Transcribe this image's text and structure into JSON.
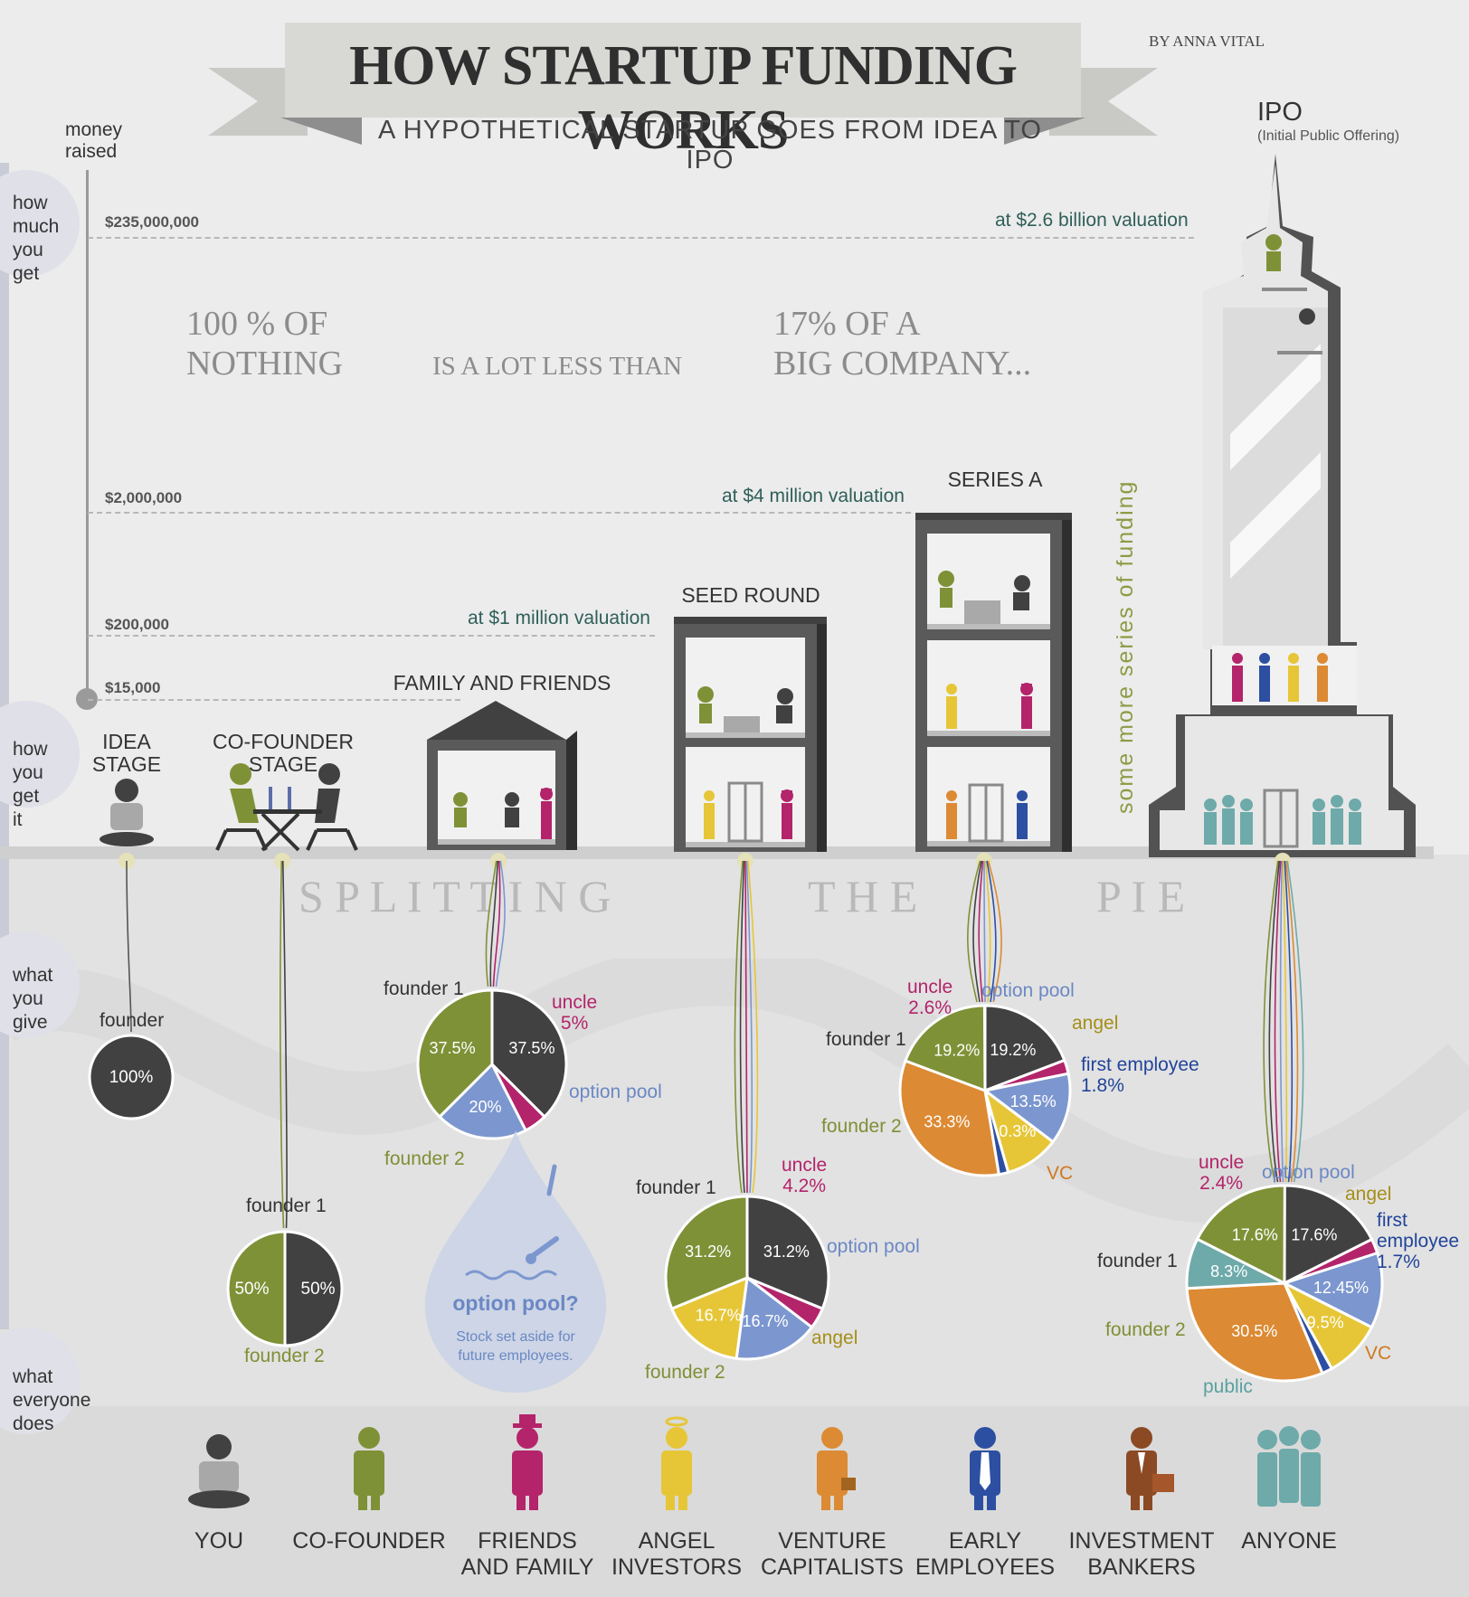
{
  "title": "HOW STARTUP FUNDING WORKS",
  "subtitle": "A HYPOTHETICAL STARTUP GOES FROM IDEA TO IPO",
  "byline": "BY ANNA VITAL",
  "axis": {
    "label": "money\nraised"
  },
  "side_labels": [
    "how\nmuch\nyou\nget",
    "how\nyou\nget\nit",
    "what\nyou\ngive",
    "what\neveryone\ndoes"
  ],
  "money_levels": [
    "$235,000,000",
    "$2,000,000",
    "$200,000",
    "$15,000"
  ],
  "valuations": [
    "at $2.6 billion valuation",
    "at $4 million valuation",
    "at $1 million valuation"
  ],
  "big_text": {
    "left": "100 % OF\nNOTHING",
    "middle": "IS A LOT LESS THAN",
    "right": "17% OF A\nBIG COMPANY..."
  },
  "stages": {
    "idea": "IDEA\nSTAGE",
    "cofounder": "CO-FOUNDER STAGE",
    "family": "FAMILY AND FRIENDS",
    "seed": "SEED ROUND",
    "series_a": "SERIES A",
    "ipo": "IPO",
    "ipo_sub": "(Initial Public Offering)"
  },
  "more_series": "some more series of funding",
  "splitting": [
    "S P L I T T I N G",
    "T H E",
    "P I E"
  ],
  "option_note": {
    "title": "option pool?",
    "text": "Stock set aside for\nfuture employees."
  },
  "colors": {
    "founder1": "#414141",
    "founder2": "#7f9137",
    "uncle": "#b3246b",
    "option": "#7c97cf",
    "angel": "#e6c637",
    "employee": "#2d4fa2",
    "vc": "#dc8a33",
    "public": "#6eaaaa"
  },
  "pies": [
    {
      "key": "idea",
      "labels": {
        "founder": "founder"
      },
      "slices": [
        {
          "role": "founder1",
          "pct": 100,
          "text": "100%"
        }
      ]
    },
    {
      "key": "cofounder",
      "labels": {
        "f1": "founder 1",
        "f2": "founder 2"
      },
      "slices": [
        {
          "role": "founder1",
          "pct": 50,
          "text": "50%"
        },
        {
          "role": "founder2",
          "pct": 50,
          "text": "50%"
        }
      ]
    },
    {
      "key": "family",
      "labels": {
        "f1": "founder 1",
        "f2": "founder 2",
        "uncle": "uncle\n5%",
        "option": "option pool"
      },
      "slices": [
        {
          "role": "founder1",
          "pct": 37.5,
          "text": "37.5%"
        },
        {
          "role": "uncle",
          "pct": 5,
          "text": ""
        },
        {
          "role": "option",
          "pct": 20,
          "text": "20%"
        },
        {
          "role": "founder2",
          "pct": 37.5,
          "text": "37.5%"
        }
      ]
    },
    {
      "key": "seed",
      "labels": {
        "f1": "founder 1",
        "f2": "founder 2",
        "uncle": "uncle\n4.2%",
        "option": "option pool",
        "angel": "angel"
      },
      "slices": [
        {
          "role": "founder1",
          "pct": 31.2,
          "text": "31.2%"
        },
        {
          "role": "uncle",
          "pct": 4.2,
          "text": ""
        },
        {
          "role": "option",
          "pct": 16.7,
          "text": "16.7%"
        },
        {
          "role": "angel",
          "pct": 16.7,
          "text": "16.7%"
        },
        {
          "role": "founder2",
          "pct": 31.2,
          "text": "31.2%"
        }
      ]
    },
    {
      "key": "series_a",
      "labels": {
        "f1": "founder 1",
        "f2": "founder 2",
        "uncle": "uncle\n2.6%",
        "option": "option pool",
        "angel": "angel",
        "employee": "first employee\n1.8%",
        "vc": "VC"
      },
      "slices": [
        {
          "role": "founder1",
          "pct": 19.2,
          "text": "19.2%"
        },
        {
          "role": "uncle",
          "pct": 2.6,
          "text": ""
        },
        {
          "role": "option",
          "pct": 13.5,
          "text": "13.5%"
        },
        {
          "role": "angel",
          "pct": 10.3,
          "text": "10.3%"
        },
        {
          "role": "employee",
          "pct": 1.8,
          "text": ""
        },
        {
          "role": "vc",
          "pct": 33.3,
          "text": "33.3%"
        },
        {
          "role": "founder2",
          "pct": 19.2,
          "text": "19.2%"
        }
      ]
    },
    {
      "key": "ipo",
      "labels": {
        "f1": "founder 1",
        "f2": "founder 2",
        "uncle": "uncle\n2.4%",
        "option": "option pool",
        "angel": "angel",
        "employee": "first\nemployee\n1.7%",
        "vc": "VC",
        "public": "public"
      },
      "slices": [
        {
          "role": "founder1",
          "pct": 17.6,
          "text": "17.6%"
        },
        {
          "role": "uncle",
          "pct": 2.4,
          "text": ""
        },
        {
          "role": "option",
          "pct": 12.45,
          "text": "12.45%"
        },
        {
          "role": "angel",
          "pct": 9.5,
          "text": "9.5%"
        },
        {
          "role": "employee",
          "pct": 1.7,
          "text": ""
        },
        {
          "role": "vc",
          "pct": 30.5,
          "text": "30.5%"
        },
        {
          "role": "public",
          "pct": 8.3,
          "text": "8.3%"
        },
        {
          "role": "founder2",
          "pct": 17.6,
          "text": "17.6%"
        }
      ]
    }
  ],
  "legend": [
    {
      "label": "YOU",
      "color": "#414141",
      "icon": "laptop-person-icon"
    },
    {
      "label": "CO-FOUNDER",
      "color": "#7f9137",
      "icon": "person-icon"
    },
    {
      "label": "FRIENDS\nAND FAMILY",
      "color": "#b3246b",
      "icon": "hat-person-icon"
    },
    {
      "label": "ANGEL\nINVESTORS",
      "color": "#e6c637",
      "icon": "halo-person-icon"
    },
    {
      "label": "VENTURE\nCAPITALISTS",
      "color": "#dc8a33",
      "icon": "briefcase-person-icon"
    },
    {
      "label": "EARLY\nEMPLOYEES",
      "color": "#2d4fa2",
      "icon": "tie-person-icon"
    },
    {
      "label": "INVESTMENT\nBANKERS",
      "color": "#8b4a24",
      "icon": "banker-person-icon"
    },
    {
      "label": "ANYONE",
      "color": "#6eaaaa",
      "icon": "crowd-icon"
    }
  ]
}
